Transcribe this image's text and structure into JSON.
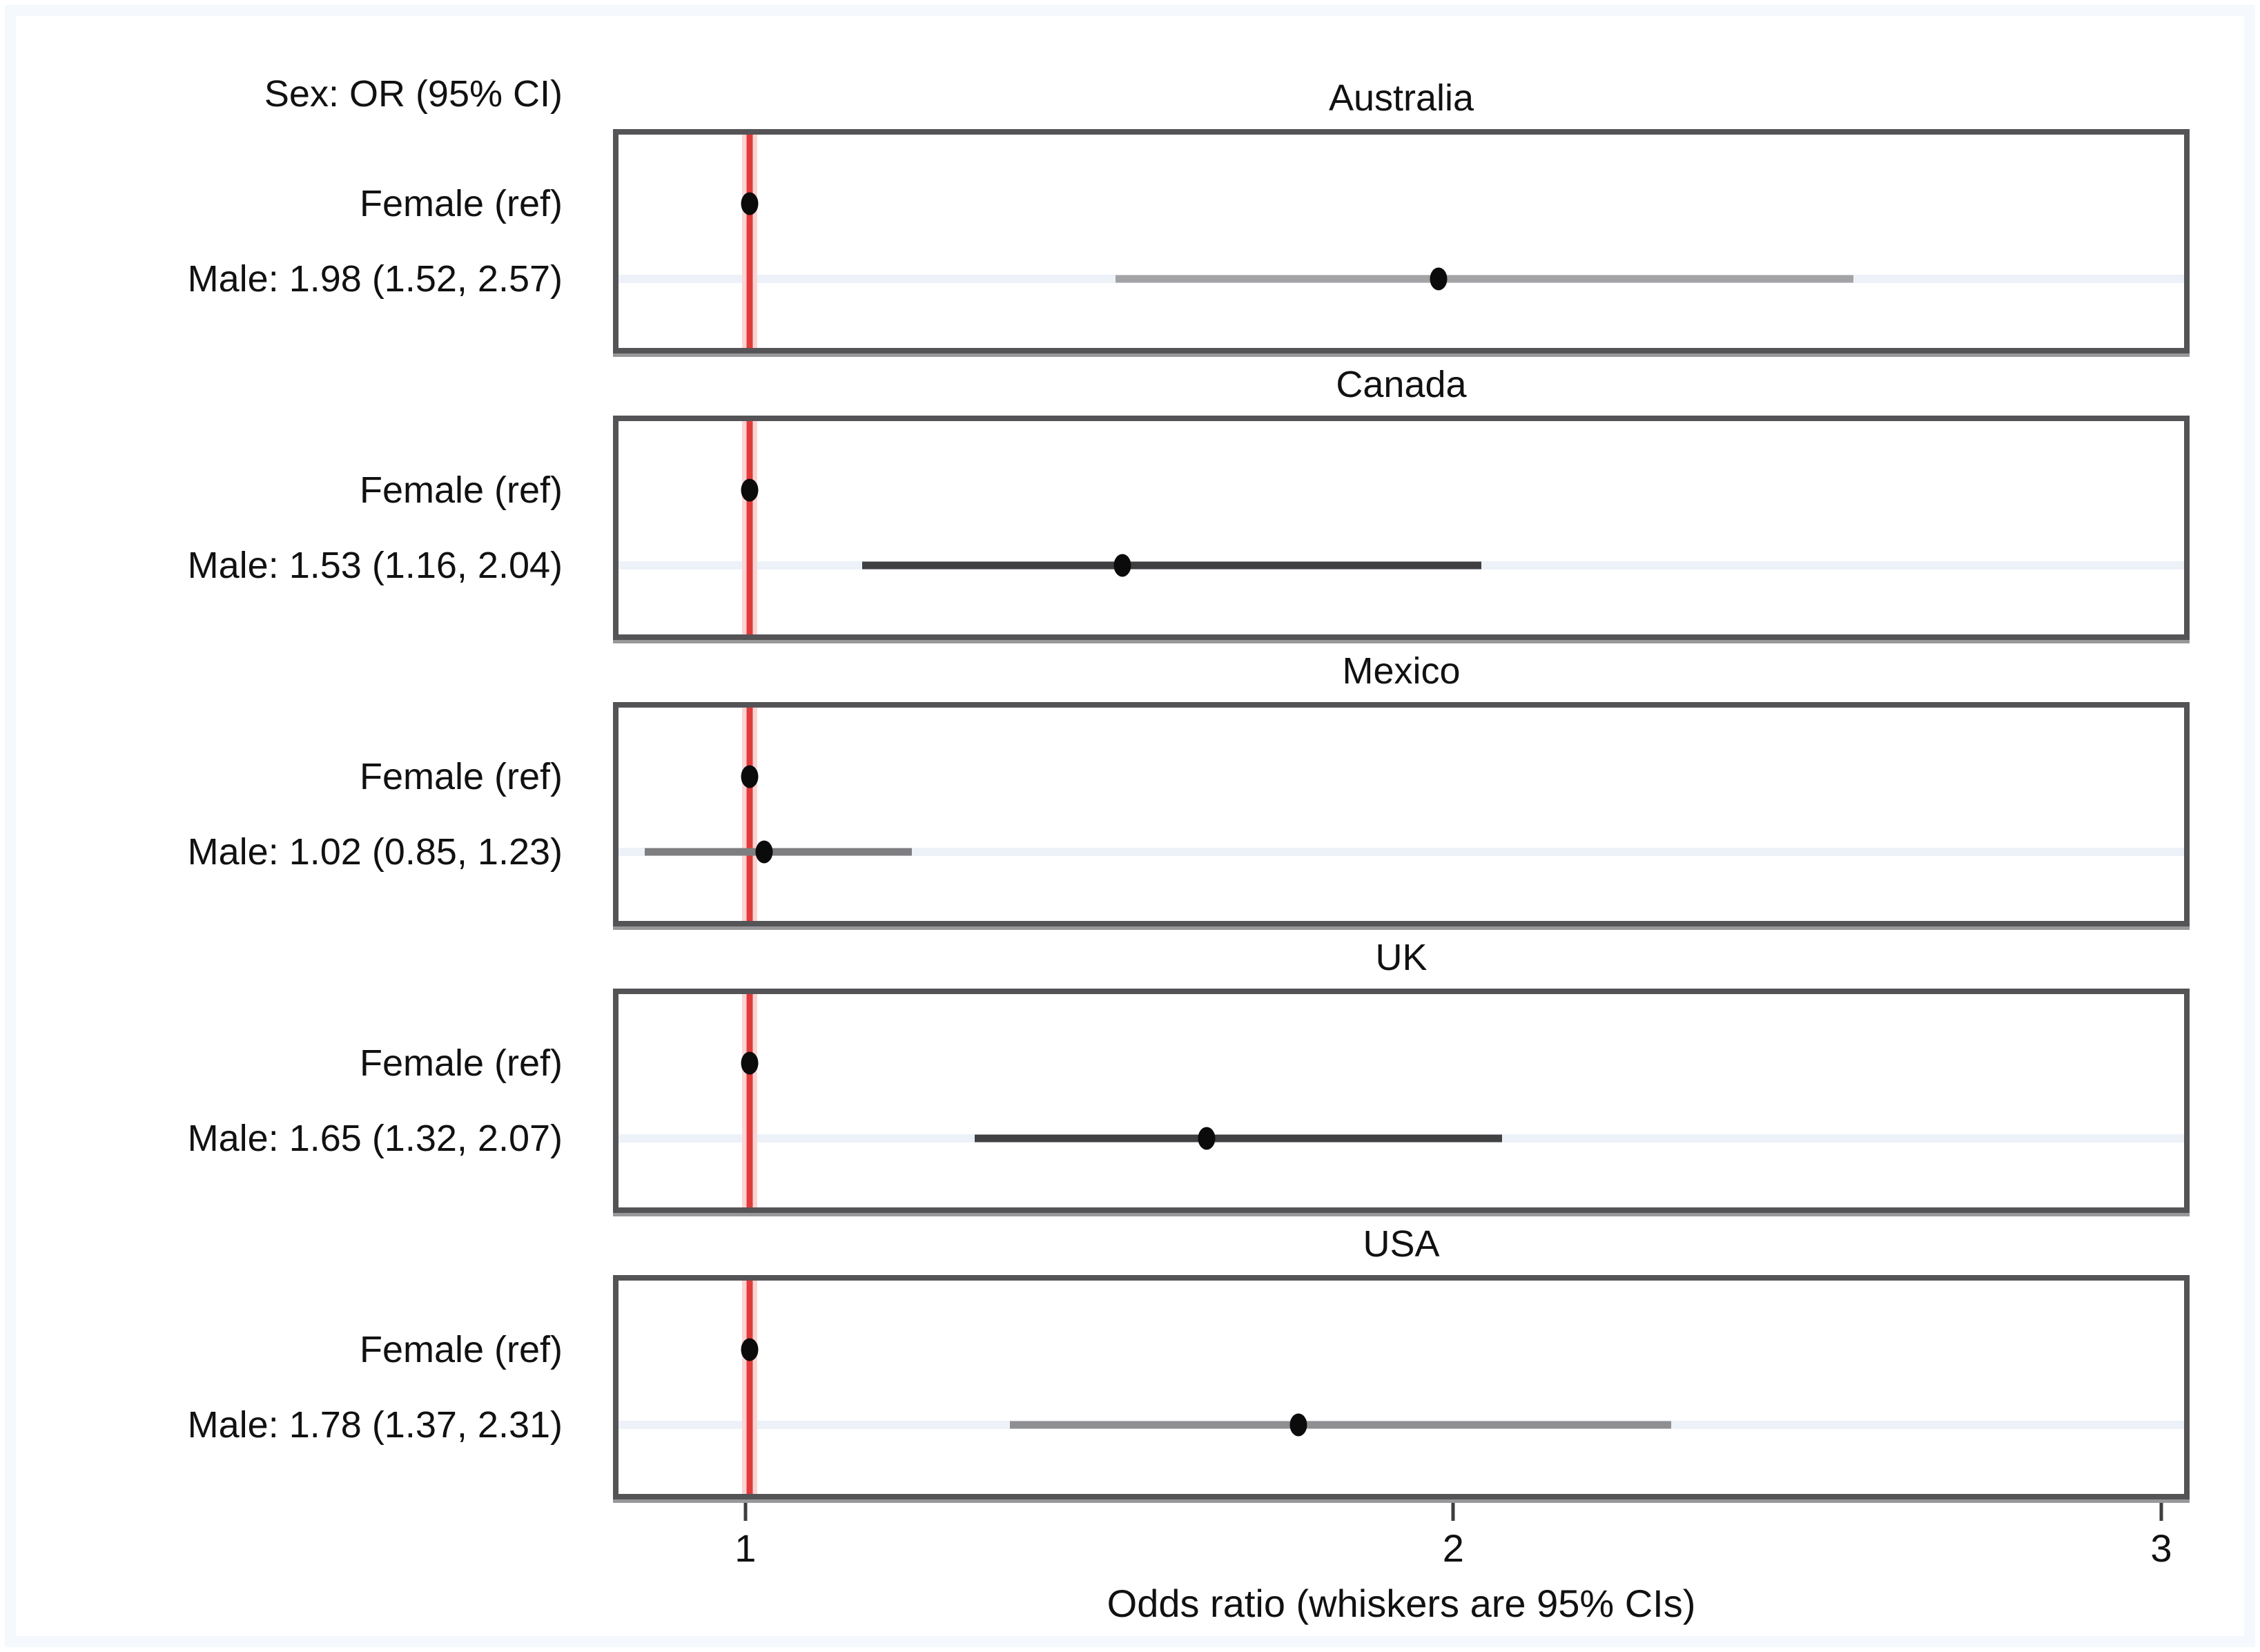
{
  "chart_data": {
    "type": "forest",
    "header_label": "Sex: OR (95% CI)",
    "female_label": "Female (ref)",
    "xlabel": "Odds ratio (whiskers are 95% CIs)",
    "xlim": [
      0.813,
      3.04
    ],
    "xticks": [
      1,
      2,
      3
    ],
    "xtick_labels": [
      "1",
      "2",
      "3"
    ],
    "ref_line_x": 1,
    "female_ref_or": 1.0,
    "countries": [
      {
        "name": "Australia",
        "male_label": "Male: 1.98 (1.52, 2.57)",
        "or": 1.98,
        "ci_low": 1.52,
        "ci_high": 2.57,
        "whisker_color": "#a3a3a6"
      },
      {
        "name": "Canada",
        "male_label": "Male: 1.53 (1.16, 2.04)",
        "or": 1.53,
        "ci_low": 1.16,
        "ci_high": 2.04,
        "whisker_color": "#3f3f41"
      },
      {
        "name": "Mexico",
        "male_label": "Male: 1.02 (0.85, 1.23)",
        "or": 1.02,
        "ci_low": 0.85,
        "ci_high": 1.23,
        "whisker_color": "#7e7e80"
      },
      {
        "name": "UK",
        "male_label": "Male: 1.65 (1.32, 2.07)",
        "or": 1.65,
        "ci_low": 1.32,
        "ci_high": 2.07,
        "whisker_color": "#414143"
      },
      {
        "name": "USA",
        "male_label": "Male: 1.78 (1.37, 2.31)",
        "or": 1.78,
        "ci_low": 1.37,
        "ci_high": 2.31,
        "whisker_color": "#8f8f92"
      }
    ],
    "colors": {
      "reference_line": "#e23b3b",
      "reference_line_halo": "#fad4d4",
      "panel_border": "#545457",
      "male_row_gridline": "#edf2f9",
      "point": "#0b0b0b",
      "tick": "#3e3e3e",
      "text": "#111111",
      "page_frame": "#f5f8fc"
    },
    "legend_position": "none",
    "grid": "male-row-only"
  }
}
